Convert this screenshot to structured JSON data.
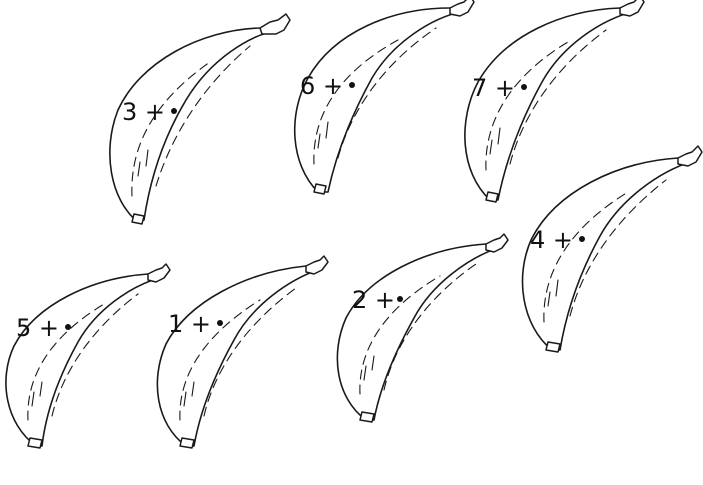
{
  "bananas": [
    {
      "expr": "3 +",
      "id": "b3"
    },
    {
      "expr": "6 +",
      "id": "b6"
    },
    {
      "expr": "7 +",
      "id": "b7"
    },
    {
      "expr": "4 +",
      "id": "b4"
    },
    {
      "expr": "5 +",
      "id": "b5"
    },
    {
      "expr": "1 +",
      "id": "b1"
    },
    {
      "expr": "2 +",
      "id": "b2"
    }
  ]
}
